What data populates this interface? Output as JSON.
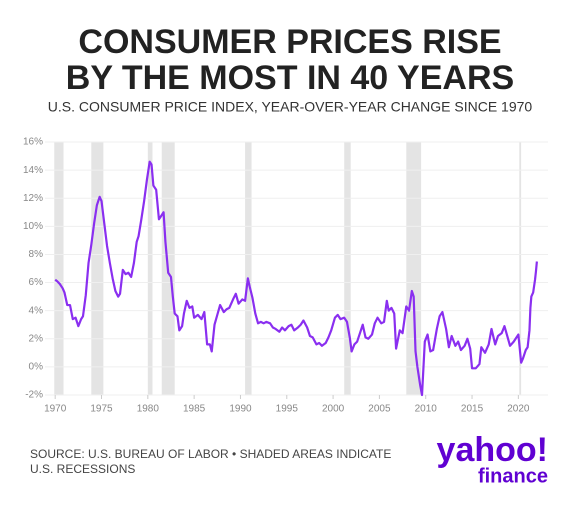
{
  "chart_data": {
    "type": "line",
    "title_lines": [
      "CONSUMER PRICES RISE",
      "BY THE MOST IN 40 YEARS"
    ],
    "subtitle": "U.S. CONSUMER PRICE INDEX, YEAR-OVER-YEAR CHANGE SINCE 1970",
    "source": "SOURCE: U.S. BUREAU OF LABOR • SHADED AREAS INDICATE U.S. RECESSIONS",
    "logo": {
      "brand": "yahoo!",
      "product": "finance"
    },
    "color": "#8a2ff0",
    "recession_color": "#e4e4e4",
    "grid": true,
    "xlim": [
      1968.9,
      2023.2
    ],
    "ylim": [
      -2,
      16
    ],
    "xticks": [
      1970,
      1975,
      1980,
      1985,
      1990,
      1995,
      2000,
      2005,
      2010,
      2015,
      2020
    ],
    "yticks": [
      {
        "value": -2,
        "label": "-2%"
      },
      {
        "value": 0,
        "label": "0%"
      },
      {
        "value": 2,
        "label": "2%"
      },
      {
        "value": 4,
        "label": "4%"
      },
      {
        "value": 6,
        "label": "6%"
      },
      {
        "value": 8,
        "label": "8%"
      },
      {
        "value": 10,
        "label": "10%"
      },
      {
        "value": 12,
        "label": "12%"
      },
      {
        "value": 14,
        "label": "14%"
      },
      {
        "value": 16,
        "label": "16%"
      }
    ],
    "recessions": [
      [
        1969.9,
        1970.9
      ],
      [
        1973.9,
        1975.2
      ],
      [
        1980.0,
        1980.5
      ],
      [
        1981.5,
        1982.9
      ],
      [
        1990.5,
        1991.2
      ],
      [
        2001.2,
        2001.9
      ],
      [
        2007.9,
        2009.5
      ],
      [
        2020.1,
        2020.3
      ]
    ],
    "x": [
      1970.0,
      1970.2,
      1970.5,
      1970.8,
      1971.0,
      1971.3,
      1971.6,
      1971.9,
      1972.2,
      1972.5,
      1972.8,
      1973.0,
      1973.3,
      1973.6,
      1973.9,
      1974.2,
      1974.5,
      1974.8,
      1975.0,
      1975.3,
      1975.6,
      1975.9,
      1976.2,
      1976.5,
      1976.8,
      1977.0,
      1977.3,
      1977.6,
      1977.9,
      1978.2,
      1978.5,
      1978.8,
      1979.0,
      1979.3,
      1979.6,
      1979.9,
      1980.2,
      1980.4,
      1980.6,
      1980.9,
      1981.2,
      1981.5,
      1981.7,
      1981.9,
      1982.2,
      1982.5,
      1982.7,
      1982.9,
      1983.2,
      1983.4,
      1983.7,
      1983.9,
      1984.2,
      1984.5,
      1984.8,
      1985.0,
      1985.4,
      1985.8,
      1986.1,
      1986.4,
      1986.7,
      1986.9,
      1987.2,
      1987.5,
      1987.8,
      1988.2,
      1988.5,
      1988.8,
      1989.2,
      1989.5,
      1989.8,
      1990.2,
      1990.5,
      1990.8,
      1991.0,
      1991.3,
      1991.6,
      1991.9,
      1992.2,
      1992.5,
      1992.8,
      1993.2,
      1993.5,
      1993.8,
      1994.2,
      1994.5,
      1994.8,
      1995.2,
      1995.5,
      1995.8,
      1996.2,
      1996.5,
      1996.8,
      1997.2,
      1997.5,
      1997.8,
      1998.2,
      1998.5,
      1998.8,
      1999.2,
      1999.5,
      1999.8,
      2000.2,
      2000.5,
      2000.8,
      2001.2,
      2001.5,
      2001.8,
      2002.0,
      2002.3,
      2002.6,
      2002.9,
      2003.2,
      2003.5,
      2003.8,
      2004.2,
      2004.5,
      2004.8,
      2005.2,
      2005.5,
      2005.8,
      2006.0,
      2006.3,
      2006.6,
      2006.8,
      2007.2,
      2007.5,
      2007.9,
      2008.2,
      2008.5,
      2008.7,
      2008.9,
      2009.1,
      2009.4,
      2009.6,
      2009.9,
      2010.2,
      2010.5,
      2010.8,
      2011.2,
      2011.5,
      2011.8,
      2012.2,
      2012.5,
      2012.8,
      2013.2,
      2013.5,
      2013.8,
      2014.2,
      2014.5,
      2014.8,
      2015.0,
      2015.4,
      2015.8,
      2016.0,
      2016.4,
      2016.8,
      2017.1,
      2017.5,
      2017.8,
      2018.2,
      2018.5,
      2018.8,
      2019.1,
      2019.5,
      2019.8,
      2020.0,
      2020.3,
      2020.5,
      2020.8,
      2021.0,
      2021.2,
      2021.3,
      2021.4,
      2021.6,
      2021.8,
      2021.9,
      2022.0
    ],
    "values": [
      6.2,
      6.1,
      5.9,
      5.6,
      5.3,
      4.4,
      4.4,
      3.4,
      3.5,
      2.9,
      3.4,
      3.6,
      5.1,
      7.4,
      8.7,
      10.2,
      11.5,
      12.1,
      11.8,
      10.2,
      8.6,
      7.4,
      6.3,
      5.4,
      5.0,
      5.2,
      6.9,
      6.6,
      6.7,
      6.4,
      7.4,
      8.9,
      9.3,
      10.5,
      11.8,
      13.3,
      14.6,
      14.4,
      12.9,
      12.6,
      10.5,
      10.8,
      11.0,
      8.9,
      6.7,
      6.4,
      5.0,
      3.8,
      3.6,
      2.6,
      2.9,
      3.8,
      4.7,
      4.2,
      4.3,
      3.5,
      3.7,
      3.4,
      3.9,
      1.6,
      1.6,
      1.1,
      3.0,
      3.7,
      4.4,
      3.9,
      4.1,
      4.2,
      4.8,
      5.2,
      4.5,
      4.8,
      4.7,
      6.3,
      5.7,
      4.9,
      3.8,
      3.1,
      3.2,
      3.1,
      3.2,
      3.1,
      2.8,
      2.7,
      2.5,
      2.8,
      2.6,
      2.9,
      3.0,
      2.6,
      2.8,
      3.0,
      3.3,
      2.8,
      2.2,
      2.1,
      1.6,
      1.7,
      1.5,
      1.7,
      2.1,
      2.6,
      3.5,
      3.7,
      3.4,
      3.5,
      3.2,
      2.1,
      1.1,
      1.6,
      1.8,
      2.4,
      3.0,
      2.1,
      2.0,
      2.3,
      3.1,
      3.5,
      3.1,
      3.2,
      4.7,
      4.0,
      4.2,
      3.8,
      1.3,
      2.6,
      2.4,
      4.3,
      4.0,
      5.4,
      5.0,
      1.1,
      0.0,
      -1.3,
      -2.0,
      1.8,
      2.3,
      1.1,
      1.2,
      2.7,
      3.6,
      3.9,
      2.7,
      1.4,
      2.2,
      1.5,
      1.8,
      1.2,
      1.5,
      2.0,
      1.3,
      -0.1,
      -0.1,
      0.2,
      1.4,
      1.0,
      1.6,
      2.7,
      1.6,
      2.2,
      2.4,
      2.9,
      2.2,
      1.5,
      1.8,
      2.1,
      2.3,
      0.3,
      0.6,
      1.2,
      1.4,
      2.6,
      4.2,
      5.0,
      5.3,
      6.2,
      6.8,
      7.5
    ]
  }
}
